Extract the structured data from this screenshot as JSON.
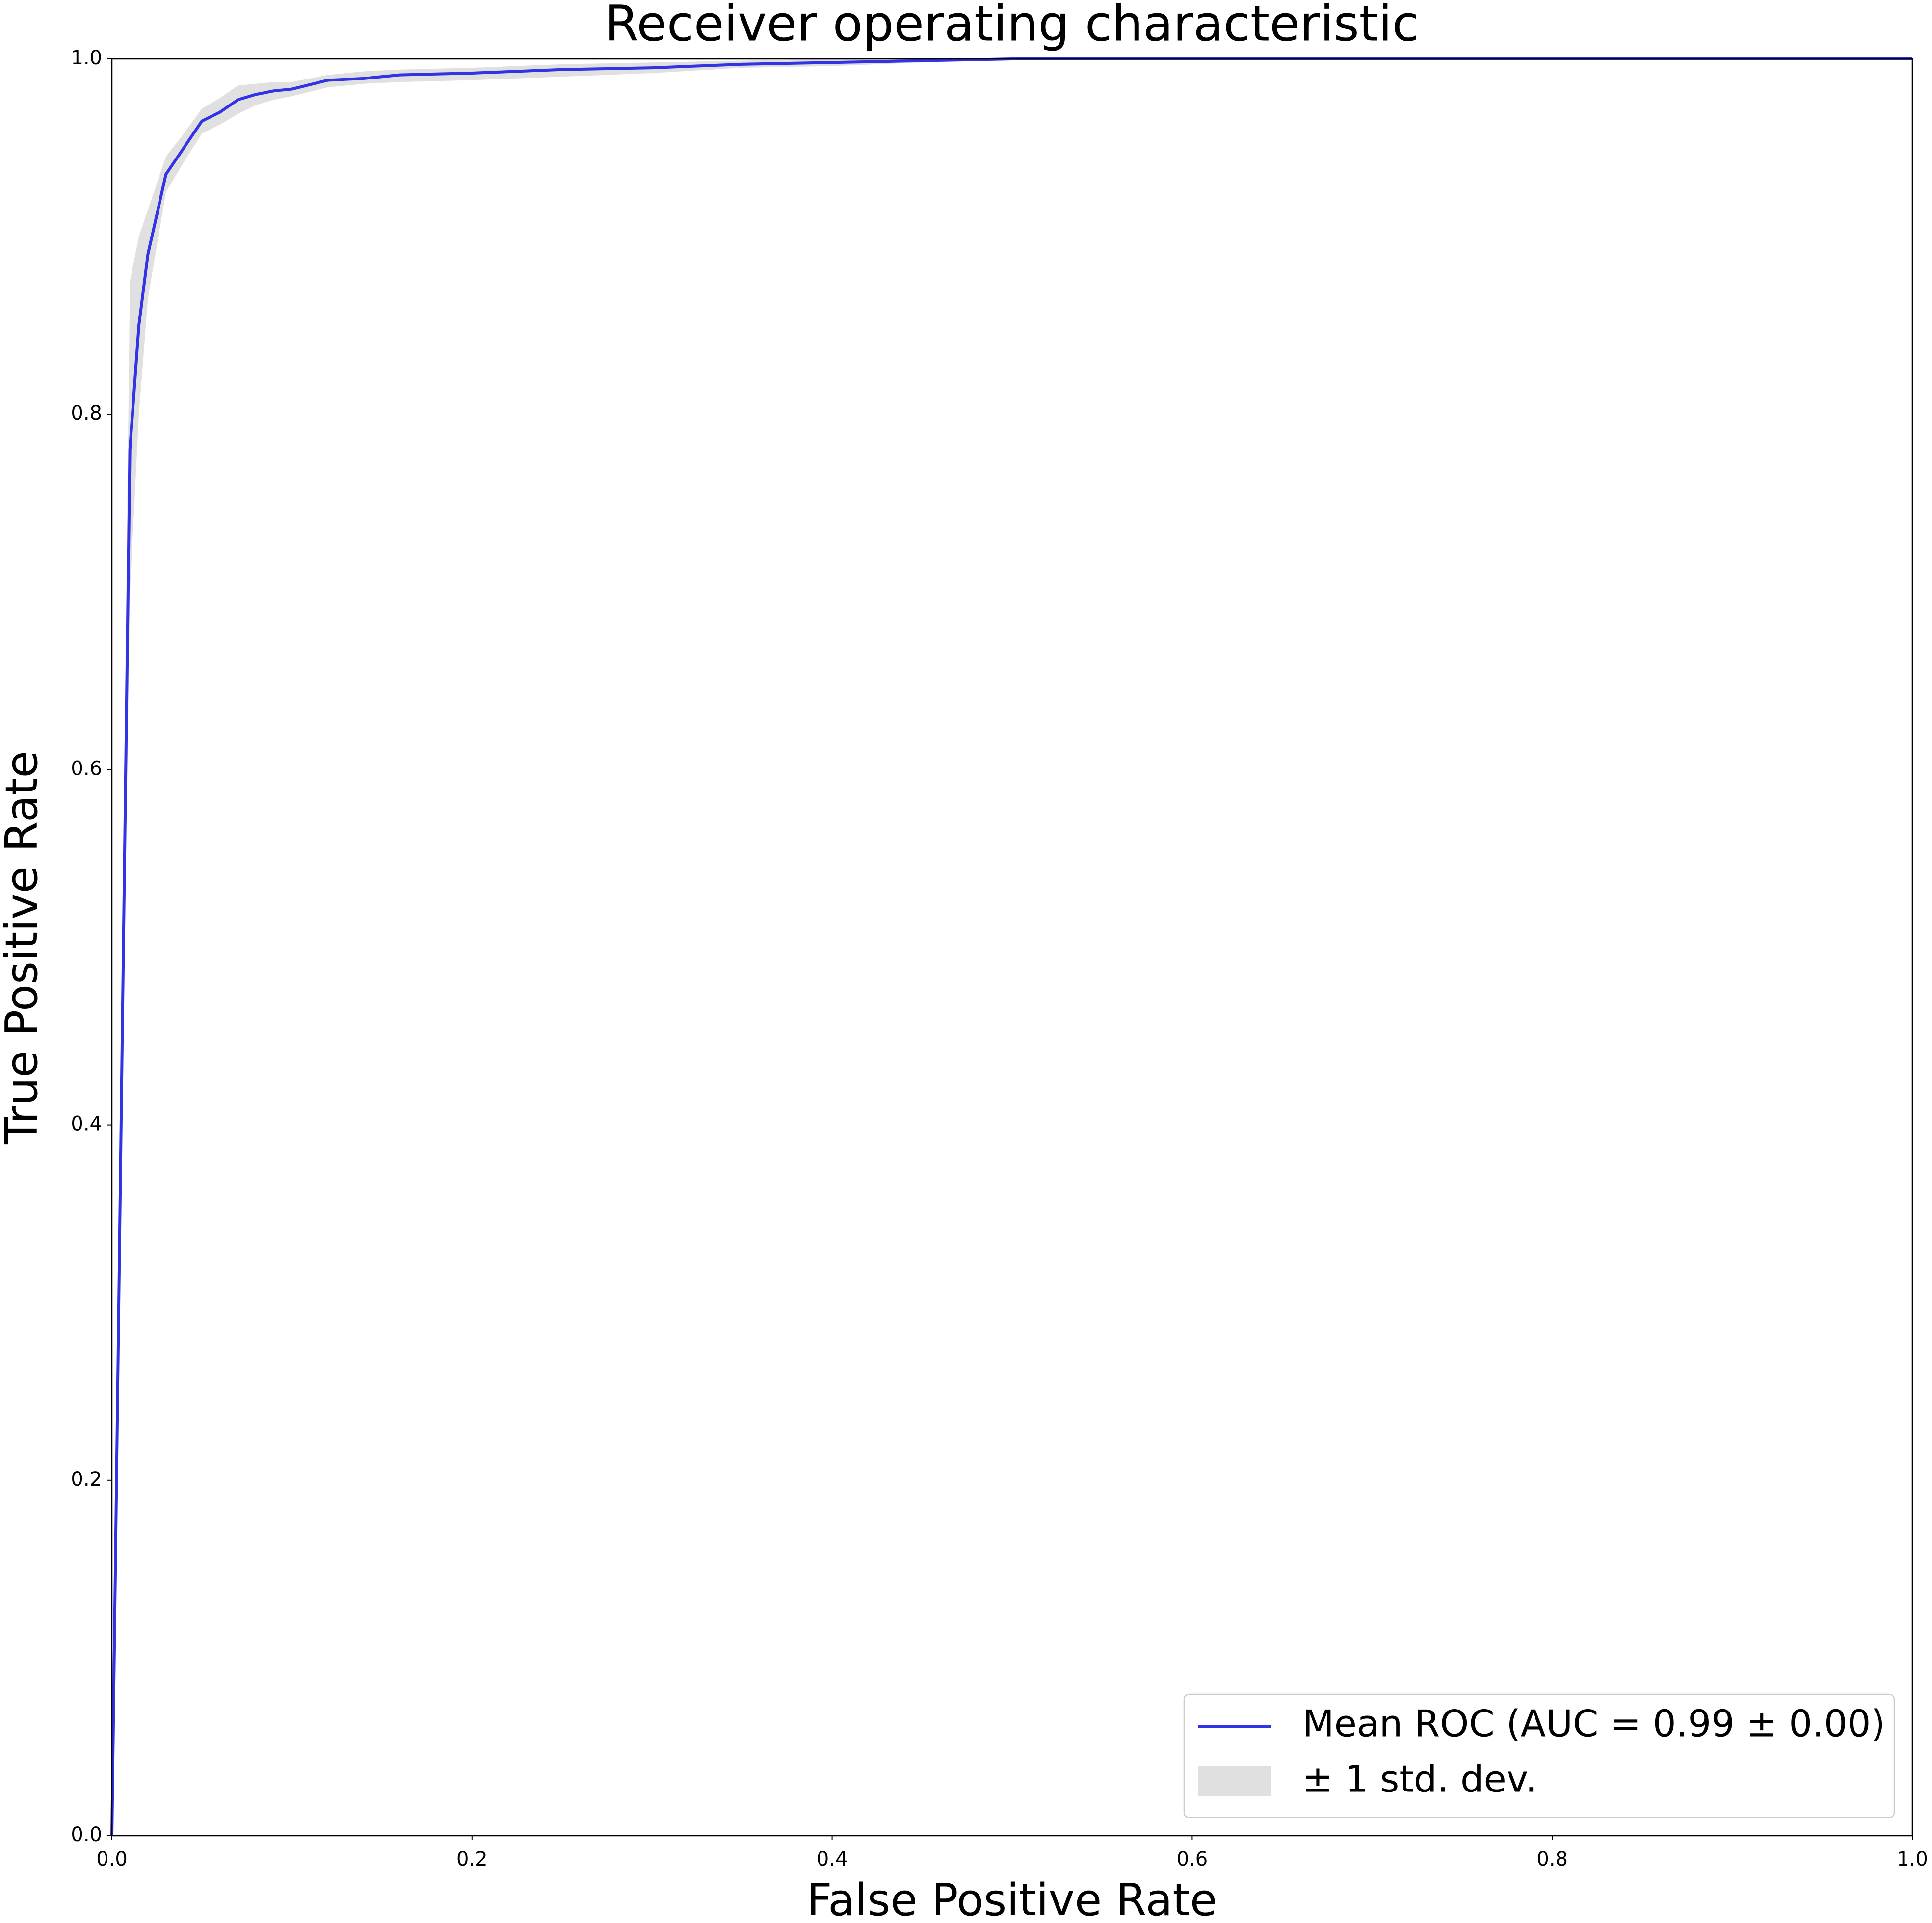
{
  "chart_data": {
    "type": "line",
    "title": "Receiver operating characteristic",
    "x_label": "False Positive Rate",
    "y_label": "True Positive Rate",
    "x": [
      0.0,
      0.01,
      0.015,
      0.02,
      0.03,
      0.04,
      0.05,
      0.06,
      0.07,
      0.08,
      0.09,
      0.1,
      0.12,
      0.14,
      0.16,
      0.2,
      0.25,
      0.3,
      0.35,
      0.4,
      0.5,
      1.0
    ],
    "series": [
      {
        "name": "Mean ROC (AUC = 0.99 ± 0.00)",
        "color": "#3333e6",
        "values": [
          0.0,
          0.78,
          0.85,
          0.89,
          0.935,
          0.95,
          0.965,
          0.97,
          0.977,
          0.98,
          0.982,
          0.983,
          0.988,
          0.989,
          0.991,
          0.992,
          0.994,
          0.995,
          0.997,
          0.998,
          1.0,
          1.0
        ]
      }
    ],
    "band": {
      "name": "± 1 std. dev.",
      "color": "#cccccc",
      "upper": [
        0.0,
        0.875,
        0.9,
        0.915,
        0.945,
        0.958,
        0.972,
        0.978,
        0.985,
        0.986,
        0.987,
        0.987,
        0.991,
        0.993,
        0.994,
        0.995,
        0.997,
        0.998,
        0.999,
        1.0,
        1.0,
        1.0
      ],
      "lower": [
        0.0,
        0.7,
        0.8,
        0.865,
        0.925,
        0.942,
        0.958,
        0.963,
        0.969,
        0.974,
        0.977,
        0.979,
        0.984,
        0.986,
        0.987,
        0.988,
        0.99,
        0.992,
        0.995,
        0.996,
        1.0,
        1.0
      ]
    },
    "xlim": [
      0.0,
      1.0
    ],
    "ylim": [
      0.0,
      1.0
    ],
    "xticks": [
      {
        "value": 0,
        "label": "0.0"
      },
      {
        "value": 0.2,
        "label": "0.2"
      },
      {
        "value": 0.4,
        "label": "0.4"
      },
      {
        "value": 0.6,
        "label": "0.6"
      },
      {
        "value": 0.8,
        "label": "0.8"
      },
      {
        "value": 1,
        "label": "1.0"
      }
    ],
    "yticks": [
      {
        "value": 0,
        "label": "0.0"
      },
      {
        "value": 0.2,
        "label": "0.2"
      },
      {
        "value": 0.4,
        "label": "0.4"
      },
      {
        "value": 0.6,
        "label": "0.6"
      },
      {
        "value": 0.8,
        "label": "0.8"
      },
      {
        "value": 1,
        "label": "1.0"
      }
    ],
    "grid": false,
    "legend": "lower right"
  }
}
